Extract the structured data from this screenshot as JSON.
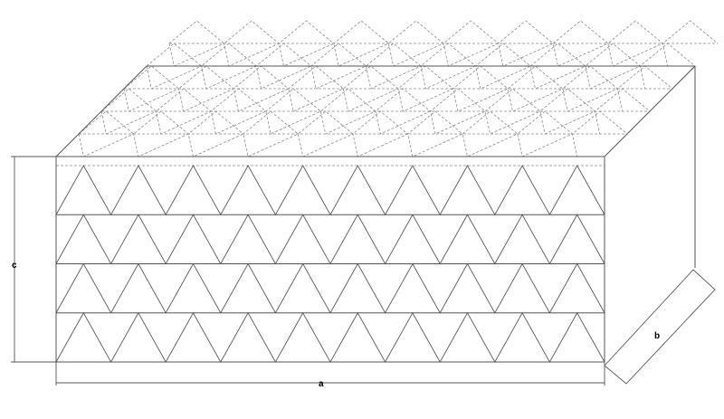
{
  "diagram": {
    "labels": {
      "length": "a",
      "depth": "b",
      "height": "c"
    },
    "front_face": {
      "rows": 4,
      "triangles_per_row": 10
    },
    "line_color": "#555555",
    "hidden_line_color": "#888888"
  }
}
